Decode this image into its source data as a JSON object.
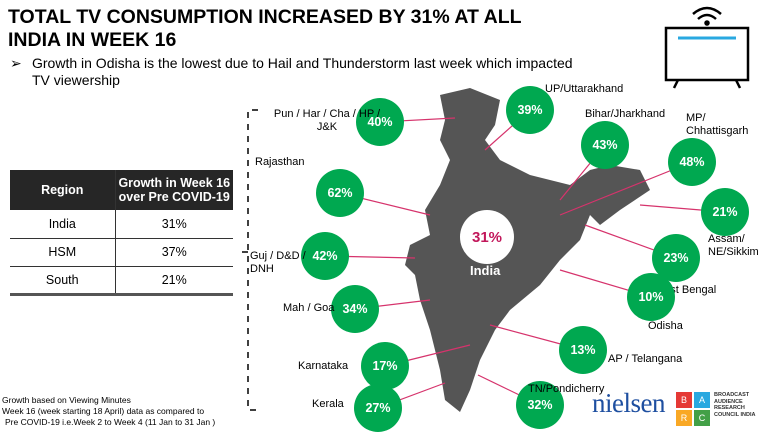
{
  "title": "TOTAL TV CONSUMPTION INCREASED BY 31% AT ALL INDIA IN WEEK 16",
  "bullet": "Growth in Odisha is the lowest due to Hail and Thunderstorm last week which impacted TV viewership",
  "table": {
    "headers": [
      "Region",
      "Growth in Week 16 over Pre COVID-19"
    ],
    "rows": [
      [
        "India",
        "31%"
      ],
      [
        "HSM",
        "37%"
      ],
      [
        "South",
        "21%"
      ]
    ]
  },
  "notes": [
    "Growth based on Viewing Minutes",
    "Week 16 (week starting 18 April) data as compared to",
    "Pre COVID-19 i.e.Week 2 to Week 4 (11 Jan to 31 Jan )"
  ],
  "map": {
    "center_label": "India",
    "center_value": "31%",
    "regions": [
      {
        "label": "Pun / Har / Cha / HP / J&K",
        "value": "40%"
      },
      {
        "label": "UP/Uttarakhand",
        "value": "39%"
      },
      {
        "label": "Bihar/Jharkhand",
        "value": "43%"
      },
      {
        "label": "MP/ Chhattisgarh",
        "value": "48%"
      },
      {
        "label": "Assam/ NE/Sikkim",
        "value": "21%"
      },
      {
        "label": "West Bengal",
        "value": "23%"
      },
      {
        "label": "Odisha",
        "value": "10%"
      },
      {
        "label": "Rajasthan",
        "value": "62%"
      },
      {
        "label": "Guj / D&D / DNH",
        "value": "42%"
      },
      {
        "label": "Mah / Goa",
        "value": "34%"
      },
      {
        "label": "Karnataka",
        "value": "17%"
      },
      {
        "label": "AP / Telangana",
        "value": "13%"
      },
      {
        "label": "Kerala",
        "value": "27%"
      },
      {
        "label": "TN/Pondicherry",
        "value": "32%"
      }
    ]
  },
  "logos": {
    "nielsen": "nielsen",
    "barc": [
      "B",
      "A",
      "R",
      "C"
    ],
    "barc_text": "BROADCAST AUDIENCE RESEARCH COUNCIL INDIA"
  },
  "colors": {
    "bubble": "#00a850",
    "connector": "#d6336c",
    "map": "#555555",
    "center_text": "#c2185b"
  }
}
